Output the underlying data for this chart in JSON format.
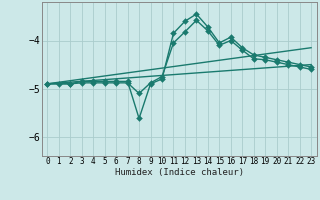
{
  "title": "",
  "xlabel": "Humidex (Indice chaleur)",
  "bg_color": "#cce8e8",
  "line_color": "#1a7a6e",
  "grid_color": "#aacccc",
  "xlim": [
    -0.5,
    23.5
  ],
  "ylim": [
    -6.4,
    -3.2
  ],
  "yticks": [
    -6,
    -5,
    -4
  ],
  "xticks": [
    0,
    1,
    2,
    3,
    4,
    5,
    6,
    7,
    8,
    9,
    10,
    11,
    12,
    13,
    14,
    15,
    16,
    17,
    18,
    19,
    20,
    21,
    22,
    23
  ],
  "series": [
    {
      "x": [
        0,
        1,
        2,
        3,
        4,
        5,
        6,
        7,
        8,
        9,
        10,
        11,
        12,
        13,
        14,
        15,
        16,
        17,
        18,
        19,
        20,
        21,
        22,
        23
      ],
      "y": [
        -4.9,
        -4.9,
        -4.9,
        -4.85,
        -4.85,
        -4.85,
        -4.85,
        -4.85,
        -5.62,
        -4.9,
        -4.8,
        -3.85,
        -3.6,
        -3.45,
        -3.72,
        -4.05,
        -3.93,
        -4.15,
        -4.3,
        -4.35,
        -4.4,
        -4.45,
        -4.5,
        -4.55
      ],
      "marker": true
    },
    {
      "x": [
        0,
        2,
        3,
        4,
        5,
        6,
        7,
        8,
        9,
        10,
        11,
        12,
        13,
        14,
        15,
        16,
        17,
        18,
        19,
        20,
        21,
        22,
        23
      ],
      "y": [
        -4.9,
        -4.9,
        -4.88,
        -4.88,
        -4.88,
        -4.88,
        -4.88,
        -5.1,
        -4.88,
        -4.75,
        -4.05,
        -3.82,
        -3.58,
        -3.8,
        -4.1,
        -4.0,
        -4.2,
        -4.38,
        -4.4,
        -4.45,
        -4.5,
        -4.55,
        -4.6
      ],
      "marker": true
    },
    {
      "x": [
        0,
        23
      ],
      "y": [
        -4.9,
        -4.15
      ],
      "marker": false
    },
    {
      "x": [
        0,
        23
      ],
      "y": [
        -4.9,
        -4.5
      ],
      "marker": false
    }
  ],
  "markersize": 3,
  "linewidth": 1.0
}
